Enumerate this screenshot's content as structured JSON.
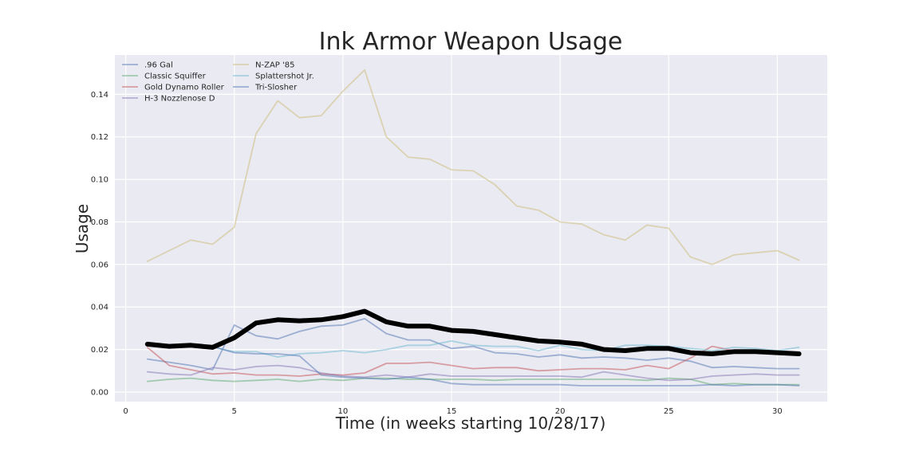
{
  "chart_data": {
    "type": "line",
    "title": "Ink Armor Weapon Usage",
    "xlabel": "Time (in weeks starting 10/28/17)",
    "ylabel": "Usage",
    "xlim": [
      -0.5,
      32.3
    ],
    "ylim": [
      -0.0045,
      0.1585
    ],
    "xticks": [
      0,
      5,
      10,
      15,
      20,
      25,
      30
    ],
    "xtick_labels": [
      "0",
      "5",
      "10",
      "15",
      "20",
      "25",
      "30"
    ],
    "yticks": [
      0.0,
      0.02,
      0.04,
      0.06,
      0.08,
      0.1,
      0.12,
      0.14
    ],
    "ytick_labels": [
      "0.00",
      "0.02",
      "0.04",
      "0.06",
      "0.08",
      "0.10",
      "0.12",
      "0.14"
    ],
    "grid": true,
    "legend_position": "top-left",
    "x": [
      1,
      2,
      3,
      4,
      5,
      6,
      7,
      8,
      9,
      10,
      11,
      12,
      13,
      14,
      15,
      16,
      17,
      18,
      19,
      20,
      21,
      22,
      23,
      24,
      25,
      26,
      27,
      28,
      29,
      30,
      31
    ],
    "series": [
      {
        "name": ".96 Gal",
        "color": "#4c72b0",
        "values": [
          0.0155,
          0.014,
          0.0125,
          0.0105,
          0.0315,
          0.0265,
          0.025,
          0.0285,
          0.031,
          0.0315,
          0.0345,
          0.0275,
          0.0245,
          0.0245,
          0.0205,
          0.0215,
          0.0185,
          0.018,
          0.0165,
          0.0175,
          0.016,
          0.0165,
          0.016,
          0.015,
          0.016,
          0.0145,
          0.0115,
          0.012,
          0.0115,
          0.011,
          0.011
        ]
      },
      {
        "name": "Classic Squiffer",
        "color": "#55a868",
        "values": [
          0.005,
          0.006,
          0.0065,
          0.0055,
          0.005,
          0.0055,
          0.006,
          0.005,
          0.006,
          0.0055,
          0.0065,
          0.0065,
          0.006,
          0.006,
          0.006,
          0.006,
          0.0055,
          0.006,
          0.006,
          0.006,
          0.006,
          0.006,
          0.006,
          0.0055,
          0.0065,
          0.006,
          0.0035,
          0.004,
          0.0035,
          0.0035,
          0.0035
        ]
      },
      {
        "name": "Gold Dynamo Roller",
        "color": "#c44e52",
        "values": [
          0.021,
          0.0125,
          0.0105,
          0.0085,
          0.009,
          0.008,
          0.008,
          0.0075,
          0.0085,
          0.008,
          0.009,
          0.0135,
          0.0135,
          0.014,
          0.0125,
          0.011,
          0.0115,
          0.0115,
          0.01,
          0.0105,
          0.011,
          0.011,
          0.0105,
          0.0125,
          0.011,
          0.016,
          0.0215,
          0.0195,
          0.019,
          0.019,
          0.018
        ]
      },
      {
        "name": "H-3 Nozzlenose D",
        "color": "#8172b2",
        "values": [
          0.0095,
          0.0085,
          0.008,
          0.0115,
          0.0105,
          0.012,
          0.0125,
          0.0115,
          0.009,
          0.0075,
          0.007,
          0.008,
          0.007,
          0.0085,
          0.0075,
          0.0075,
          0.0075,
          0.0075,
          0.0075,
          0.0075,
          0.007,
          0.0095,
          0.008,
          0.0065,
          0.0055,
          0.006,
          0.0075,
          0.008,
          0.0085,
          0.008,
          0.008
        ]
      },
      {
        "name": "N-ZAP '85",
        "color": "#ccb974",
        "values": [
          0.0615,
          0.0665,
          0.0715,
          0.0695,
          0.0775,
          0.1215,
          0.137,
          0.129,
          0.13,
          0.1415,
          0.1515,
          0.12,
          0.1105,
          0.1095,
          0.1045,
          0.104,
          0.0975,
          0.0875,
          0.0855,
          0.08,
          0.079,
          0.074,
          0.0715,
          0.0785,
          0.077,
          0.0635,
          0.06,
          0.0645,
          0.0655,
          0.0665,
          0.062
        ]
      },
      {
        "name": "Splattershot Jr.",
        "color": "#64b5cd",
        "values": [
          0.0225,
          0.022,
          0.0215,
          0.021,
          0.019,
          0.019,
          0.0165,
          0.018,
          0.0185,
          0.0195,
          0.0185,
          0.02,
          0.022,
          0.022,
          0.024,
          0.022,
          0.0215,
          0.0215,
          0.0195,
          0.022,
          0.02,
          0.0195,
          0.022,
          0.022,
          0.0215,
          0.0205,
          0.0195,
          0.021,
          0.0205,
          0.0195,
          0.021
        ]
      },
      {
        "name": "Tri-Slosher",
        "color": "#4c72b0",
        "values": [
          0.0225,
          0.022,
          0.022,
          0.0215,
          0.0185,
          0.018,
          0.018,
          0.017,
          0.008,
          0.007,
          0.0065,
          0.006,
          0.007,
          0.006,
          0.004,
          0.0035,
          0.0035,
          0.0035,
          0.0035,
          0.0035,
          0.003,
          0.003,
          0.003,
          0.003,
          0.003,
          0.003,
          0.0035,
          0.003,
          0.0035,
          0.0035,
          0.003
        ]
      },
      {
        "name": "",
        "color": "#000000",
        "bold": true,
        "values": [
          0.0225,
          0.0215,
          0.022,
          0.021,
          0.0255,
          0.0325,
          0.034,
          0.0335,
          0.034,
          0.0355,
          0.038,
          0.033,
          0.031,
          0.031,
          0.029,
          0.0285,
          0.027,
          0.0255,
          0.024,
          0.0235,
          0.0225,
          0.02,
          0.0195,
          0.0205,
          0.0205,
          0.0185,
          0.018,
          0.019,
          0.019,
          0.0185,
          0.018
        ]
      }
    ]
  }
}
